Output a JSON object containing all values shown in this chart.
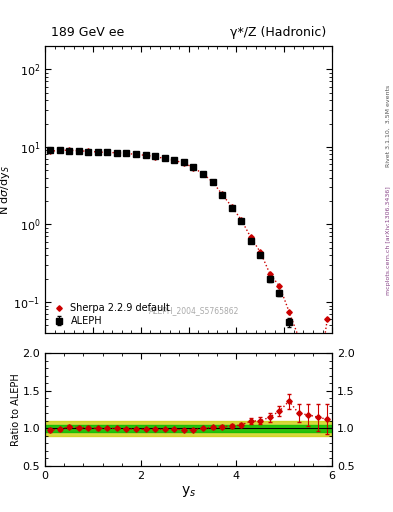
{
  "title_left": "189 GeV ee",
  "title_right": "γ*/Z (Hadronic)",
  "ylabel_main": "N dσ/dy$_S$",
  "ylabel_ratio": "Ratio to ALEPH",
  "xlabel": "y_s",
  "right_label": "Rivet 3.1.10,  3.5M events",
  "right_label2": "mcplots.cern.ch [arXiv:1306.3436]",
  "watermark": "ALEPH_2004_S5765862",
  "aleph_x": [
    0.1,
    0.3,
    0.5,
    0.7,
    0.9,
    1.1,
    1.3,
    1.5,
    1.7,
    1.9,
    2.1,
    2.3,
    2.5,
    2.7,
    2.9,
    3.1,
    3.3,
    3.5,
    3.7,
    3.9,
    4.1,
    4.3,
    4.5,
    4.7,
    4.9,
    5.1
  ],
  "aleph_y": [
    9.0,
    9.1,
    8.9,
    8.8,
    8.7,
    8.6,
    8.5,
    8.4,
    8.3,
    8.1,
    7.9,
    7.6,
    7.2,
    6.8,
    6.3,
    5.5,
    4.5,
    3.5,
    2.4,
    1.65,
    1.1,
    0.62,
    0.4,
    0.2,
    0.13,
    0.055
  ],
  "aleph_yerr": [
    0.25,
    0.22,
    0.2,
    0.18,
    0.17,
    0.16,
    0.15,
    0.14,
    0.13,
    0.13,
    0.12,
    0.11,
    0.11,
    0.1,
    0.09,
    0.08,
    0.08,
    0.07,
    0.06,
    0.05,
    0.04,
    0.03,
    0.025,
    0.018,
    0.012,
    0.008
  ],
  "sherpa_x": [
    0.1,
    0.3,
    0.5,
    0.7,
    0.9,
    1.1,
    1.3,
    1.5,
    1.7,
    1.9,
    2.1,
    2.3,
    2.5,
    2.7,
    2.9,
    3.1,
    3.3,
    3.5,
    3.7,
    3.9,
    4.1,
    4.3,
    4.5,
    4.7,
    4.9,
    5.1,
    5.3,
    5.5,
    5.7,
    5.9
  ],
  "sherpa_y": [
    8.8,
    9.0,
    9.1,
    8.9,
    8.8,
    8.6,
    8.5,
    8.4,
    8.25,
    8.0,
    7.8,
    7.5,
    7.1,
    6.7,
    6.2,
    5.4,
    4.5,
    3.55,
    2.45,
    1.7,
    1.15,
    0.68,
    0.44,
    0.23,
    0.16,
    0.075,
    0.035,
    0.018,
    0.009,
    0.06
  ],
  "ratio_x": [
    0.1,
    0.3,
    0.5,
    0.7,
    0.9,
    1.1,
    1.3,
    1.5,
    1.7,
    1.9,
    2.1,
    2.3,
    2.5,
    2.7,
    2.9,
    3.1,
    3.3,
    3.5,
    3.7,
    3.9,
    4.1,
    4.3,
    4.5,
    4.7,
    4.9,
    5.1,
    5.3,
    5.5,
    5.7,
    5.9
  ],
  "ratio_y": [
    0.978,
    0.989,
    1.022,
    1.011,
    1.011,
    1.0,
    1.0,
    1.0,
    0.994,
    0.988,
    0.987,
    0.987,
    0.986,
    0.985,
    0.984,
    0.982,
    1.0,
    1.014,
    1.021,
    1.03,
    1.045,
    1.097,
    1.1,
    1.15,
    1.231,
    1.364,
    1.2,
    1.18,
    1.15,
    1.12
  ],
  "ratio_yerr": [
    0.025,
    0.022,
    0.02,
    0.018,
    0.017,
    0.016,
    0.015,
    0.014,
    0.013,
    0.013,
    0.012,
    0.012,
    0.012,
    0.011,
    0.01,
    0.01,
    0.015,
    0.018,
    0.02,
    0.025,
    0.03,
    0.04,
    0.045,
    0.06,
    0.07,
    0.1,
    0.12,
    0.15,
    0.18,
    0.2
  ],
  "xlim": [
    0,
    6.0
  ],
  "ylim_main": [
    0.04,
    200
  ],
  "ylim_ratio": [
    0.5,
    2.0
  ],
  "aleph_color": "#000000",
  "sherpa_color": "#cc0000",
  "green_band_color": "#00bb00",
  "yellow_band_color": "#cccc00",
  "bg_color": "#ffffff"
}
